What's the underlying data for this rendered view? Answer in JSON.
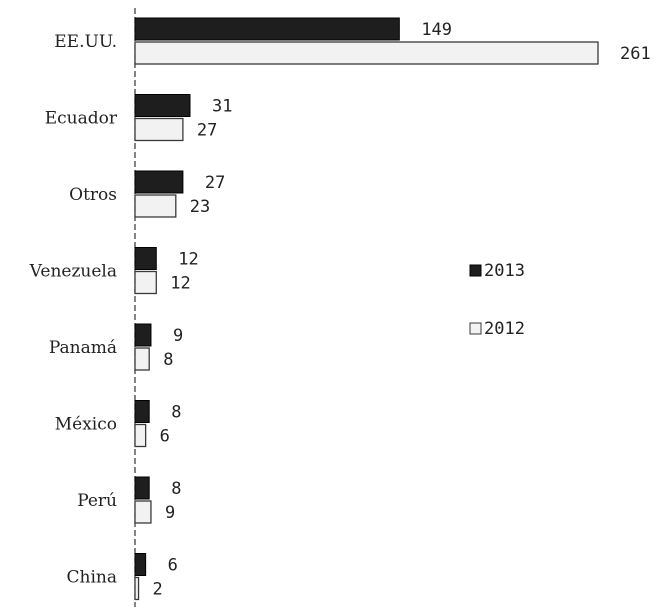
{
  "chart_data": {
    "type": "bar",
    "orientation": "horizontal",
    "categories": [
      "EE.UU.",
      "Ecuador",
      "Otros",
      "Venezuela",
      "Panamá",
      "México",
      "Perú",
      "China"
    ],
    "series": [
      {
        "name": "2013",
        "values": [
          149,
          31,
          27,
          12,
          9,
          8,
          8,
          6
        ],
        "color": "#1e1e1e"
      },
      {
        "name": "2012",
        "values": [
          261,
          27,
          23,
          12,
          8,
          6,
          9,
          2
        ],
        "color": "#f2f2f2"
      }
    ],
    "xlim": [
      0,
      261
    ],
    "grid": false,
    "legend_position": "right"
  },
  "colors": {
    "series_2013_edge": "#000000",
    "series_2012_edge": "#3a3a3a",
    "axis": "#333333"
  }
}
